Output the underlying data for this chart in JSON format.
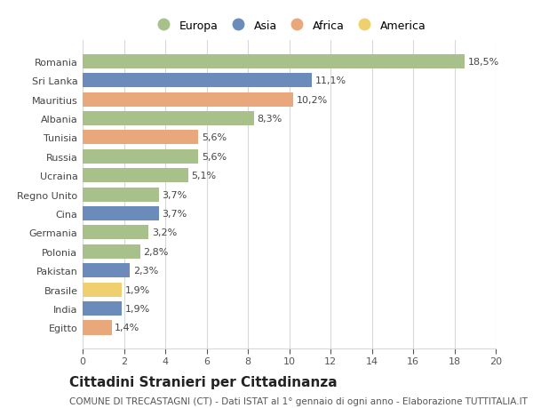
{
  "categories": [
    "Egitto",
    "India",
    "Brasile",
    "Pakistan",
    "Polonia",
    "Germania",
    "Cina",
    "Regno Unito",
    "Ucraina",
    "Russia",
    "Tunisia",
    "Albania",
    "Mauritius",
    "Sri Lanka",
    "Romania"
  ],
  "values": [
    1.4,
    1.9,
    1.9,
    2.3,
    2.8,
    3.2,
    3.7,
    3.7,
    5.1,
    5.6,
    5.6,
    8.3,
    10.2,
    11.1,
    18.5
  ],
  "labels": [
    "1,4%",
    "1,9%",
    "1,9%",
    "2,3%",
    "2,8%",
    "3,2%",
    "3,7%",
    "3,7%",
    "5,1%",
    "5,6%",
    "5,6%",
    "8,3%",
    "10,2%",
    "11,1%",
    "18,5%"
  ],
  "continents": [
    "Africa",
    "Asia",
    "America",
    "Asia",
    "Europa",
    "Europa",
    "Asia",
    "Europa",
    "Europa",
    "Europa",
    "Africa",
    "Europa",
    "Africa",
    "Asia",
    "Europa"
  ],
  "colors": {
    "Europa": "#a8c08a",
    "Asia": "#6b8cba",
    "Africa": "#e8a87c",
    "America": "#f0d06e"
  },
  "legend_order": [
    "Europa",
    "Asia",
    "Africa",
    "America"
  ],
  "title": "Cittadini Stranieri per Cittadinanza",
  "subtitle": "COMUNE DI TRECASTAGNI (CT) - Dati ISTAT al 1° gennaio di ogni anno - Elaborazione TUTTITALIA.IT",
  "xlim": [
    0,
    20
  ],
  "xticks": [
    0,
    2,
    4,
    6,
    8,
    10,
    12,
    14,
    16,
    18,
    20
  ],
  "bg_color": "#ffffff",
  "grid_color": "#d8d8d8",
  "bar_height": 0.75,
  "label_fontsize": 8,
  "title_fontsize": 11,
  "subtitle_fontsize": 7.5,
  "ytick_fontsize": 8,
  "xtick_fontsize": 8,
  "legend_fontsize": 9
}
